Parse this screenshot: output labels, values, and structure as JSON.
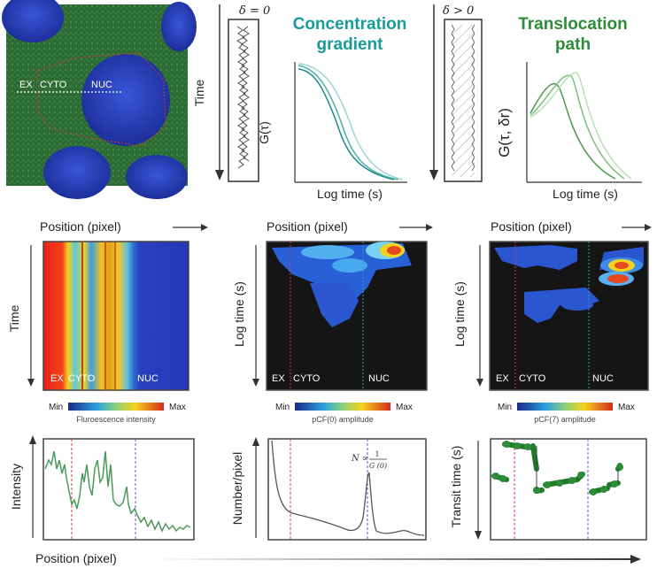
{
  "top": {
    "delta_zero": "δ = 0",
    "delta_pos": "δ > 0",
    "time": "Time",
    "conc_title_1": "Concentration",
    "conc_title_2": "gradient",
    "trans_title_1": "Translocation",
    "trans_title_2": "path",
    "g_tau": "G(τ)",
    "g_tau_dr": "G(τ, δr)",
    "log_time": "Log time (s)",
    "micro_labels": [
      "EX",
      "CYTO",
      "NUC"
    ]
  },
  "middle": {
    "position": "Position (pixel)",
    "time": "Time",
    "log_time": "Log time (s)",
    "region_labels": [
      "EX",
      "CYTO",
      "NUC"
    ],
    "scale_min": "Min",
    "scale_max": "Max",
    "scale_captions": [
      "Fluroescence intensity",
      "pCF(0) amplitude",
      "pCF(7) amplitude"
    ]
  },
  "bottom": {
    "intensity": "Intensity",
    "number_pixel": "Number/pixel",
    "transit_time": "Transit time (s)",
    "position": "Position (pixel)",
    "n_formula": "N ∝",
    "n_num": "1",
    "n_den": "G (0)"
  },
  "colors": {
    "teal": "#1a9b9b",
    "green": "#2e8b3a",
    "nuc_blue": "#2a3fb8",
    "cell_green": "#2f7a3a",
    "red_dash": "#d04040",
    "blue_dash": "#5b5bc8"
  }
}
